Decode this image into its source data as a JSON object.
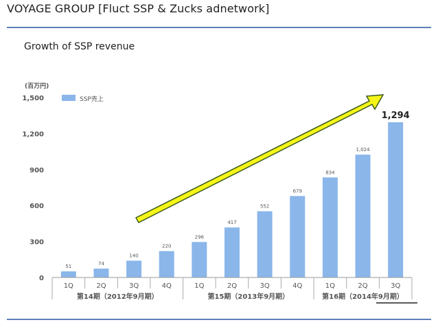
{
  "slide": {
    "title": "VOYAGE GROUP [Fluct SSP & Zucks adnetwork]",
    "subtitle": "Growth of SSP revenue"
  },
  "colors": {
    "bar": "#8ab6ea",
    "arrow_fill": "#f5f51a",
    "arrow_stroke": "#3a5a1a",
    "rule": "#5b7fb8",
    "axis_text": "#555555"
  },
  "chart_data": {
    "type": "bar",
    "unit_label": "(百万円)",
    "legend": "SSP売上",
    "categories": [
      "1Q",
      "2Q",
      "3Q",
      "4Q",
      "1Q",
      "2Q",
      "3Q",
      "4Q",
      "1Q",
      "2Q",
      "3Q"
    ],
    "values": [
      51,
      74,
      140,
      220,
      296,
      417,
      552,
      679,
      834,
      1024,
      1294
    ],
    "value_labels": [
      "51",
      "74",
      "140",
      "220",
      "296",
      "417",
      "552",
      "679",
      "834",
      "1,024",
      "1,294"
    ],
    "groups": [
      "第14期（2012年9月期）",
      "第15期（2013年9月期）",
      "第16期（2014年9月期）"
    ],
    "ylim": [
      0,
      1500
    ],
    "yticks": [
      "0",
      "300",
      "600",
      "900",
      "1,200",
      "1,500"
    ],
    "grid": false,
    "legend_position": "top-left"
  }
}
